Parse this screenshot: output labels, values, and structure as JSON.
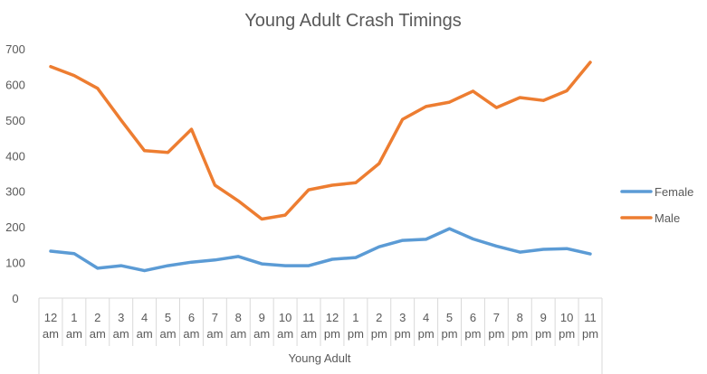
{
  "chart_data": {
    "type": "line",
    "title": "Young Adult Crash Timings",
    "xlabel": "Young Adult",
    "ylabel": "",
    "ylim": [
      0,
      700
    ],
    "yticks": [
      "0",
      "100",
      "200",
      "300",
      "400",
      "500",
      "600",
      "700"
    ],
    "grid": false,
    "legend_position": "right",
    "categories": [
      {
        "top": "12",
        "bottom": "am"
      },
      {
        "top": "1",
        "bottom": "am"
      },
      {
        "top": "2",
        "bottom": "am"
      },
      {
        "top": "3",
        "bottom": "am"
      },
      {
        "top": "4",
        "bottom": "am"
      },
      {
        "top": "5",
        "bottom": "am"
      },
      {
        "top": "6",
        "bottom": "am"
      },
      {
        "top": "7",
        "bottom": "am"
      },
      {
        "top": "8",
        "bottom": "am"
      },
      {
        "top": "9",
        "bottom": "am"
      },
      {
        "top": "10",
        "bottom": "am"
      },
      {
        "top": "11",
        "bottom": "am"
      },
      {
        "top": "12",
        "bottom": "pm"
      },
      {
        "top": "1",
        "bottom": "pm"
      },
      {
        "top": "2",
        "bottom": "pm"
      },
      {
        "top": "3",
        "bottom": "pm"
      },
      {
        "top": "4",
        "bottom": "pm"
      },
      {
        "top": "5",
        "bottom": "pm"
      },
      {
        "top": "6",
        "bottom": "pm"
      },
      {
        "top": "7",
        "bottom": "pm"
      },
      {
        "top": "8",
        "bottom": "pm"
      },
      {
        "top": "9",
        "bottom": "pm"
      },
      {
        "top": "10",
        "bottom": "pm"
      },
      {
        "top": "11",
        "bottom": "pm"
      }
    ],
    "series": [
      {
        "name": "Female",
        "color": "#5b9bd5",
        "values": [
          132,
          125,
          84,
          91,
          77,
          91,
          101,
          107,
          117,
          96,
          91,
          91,
          109,
          114,
          144,
          162,
          165,
          195,
          166,
          146,
          129,
          137,
          139,
          124
        ]
      },
      {
        "name": "Male",
        "color": "#ed7d31",
        "values": [
          650,
          625,
          589,
          500,
          414,
          409,
          474,
          317,
          273,
          222,
          233,
          304,
          317,
          324,
          378,
          502,
          538,
          550,
          581,
          535,
          563,
          555,
          582,
          662
        ]
      }
    ]
  }
}
